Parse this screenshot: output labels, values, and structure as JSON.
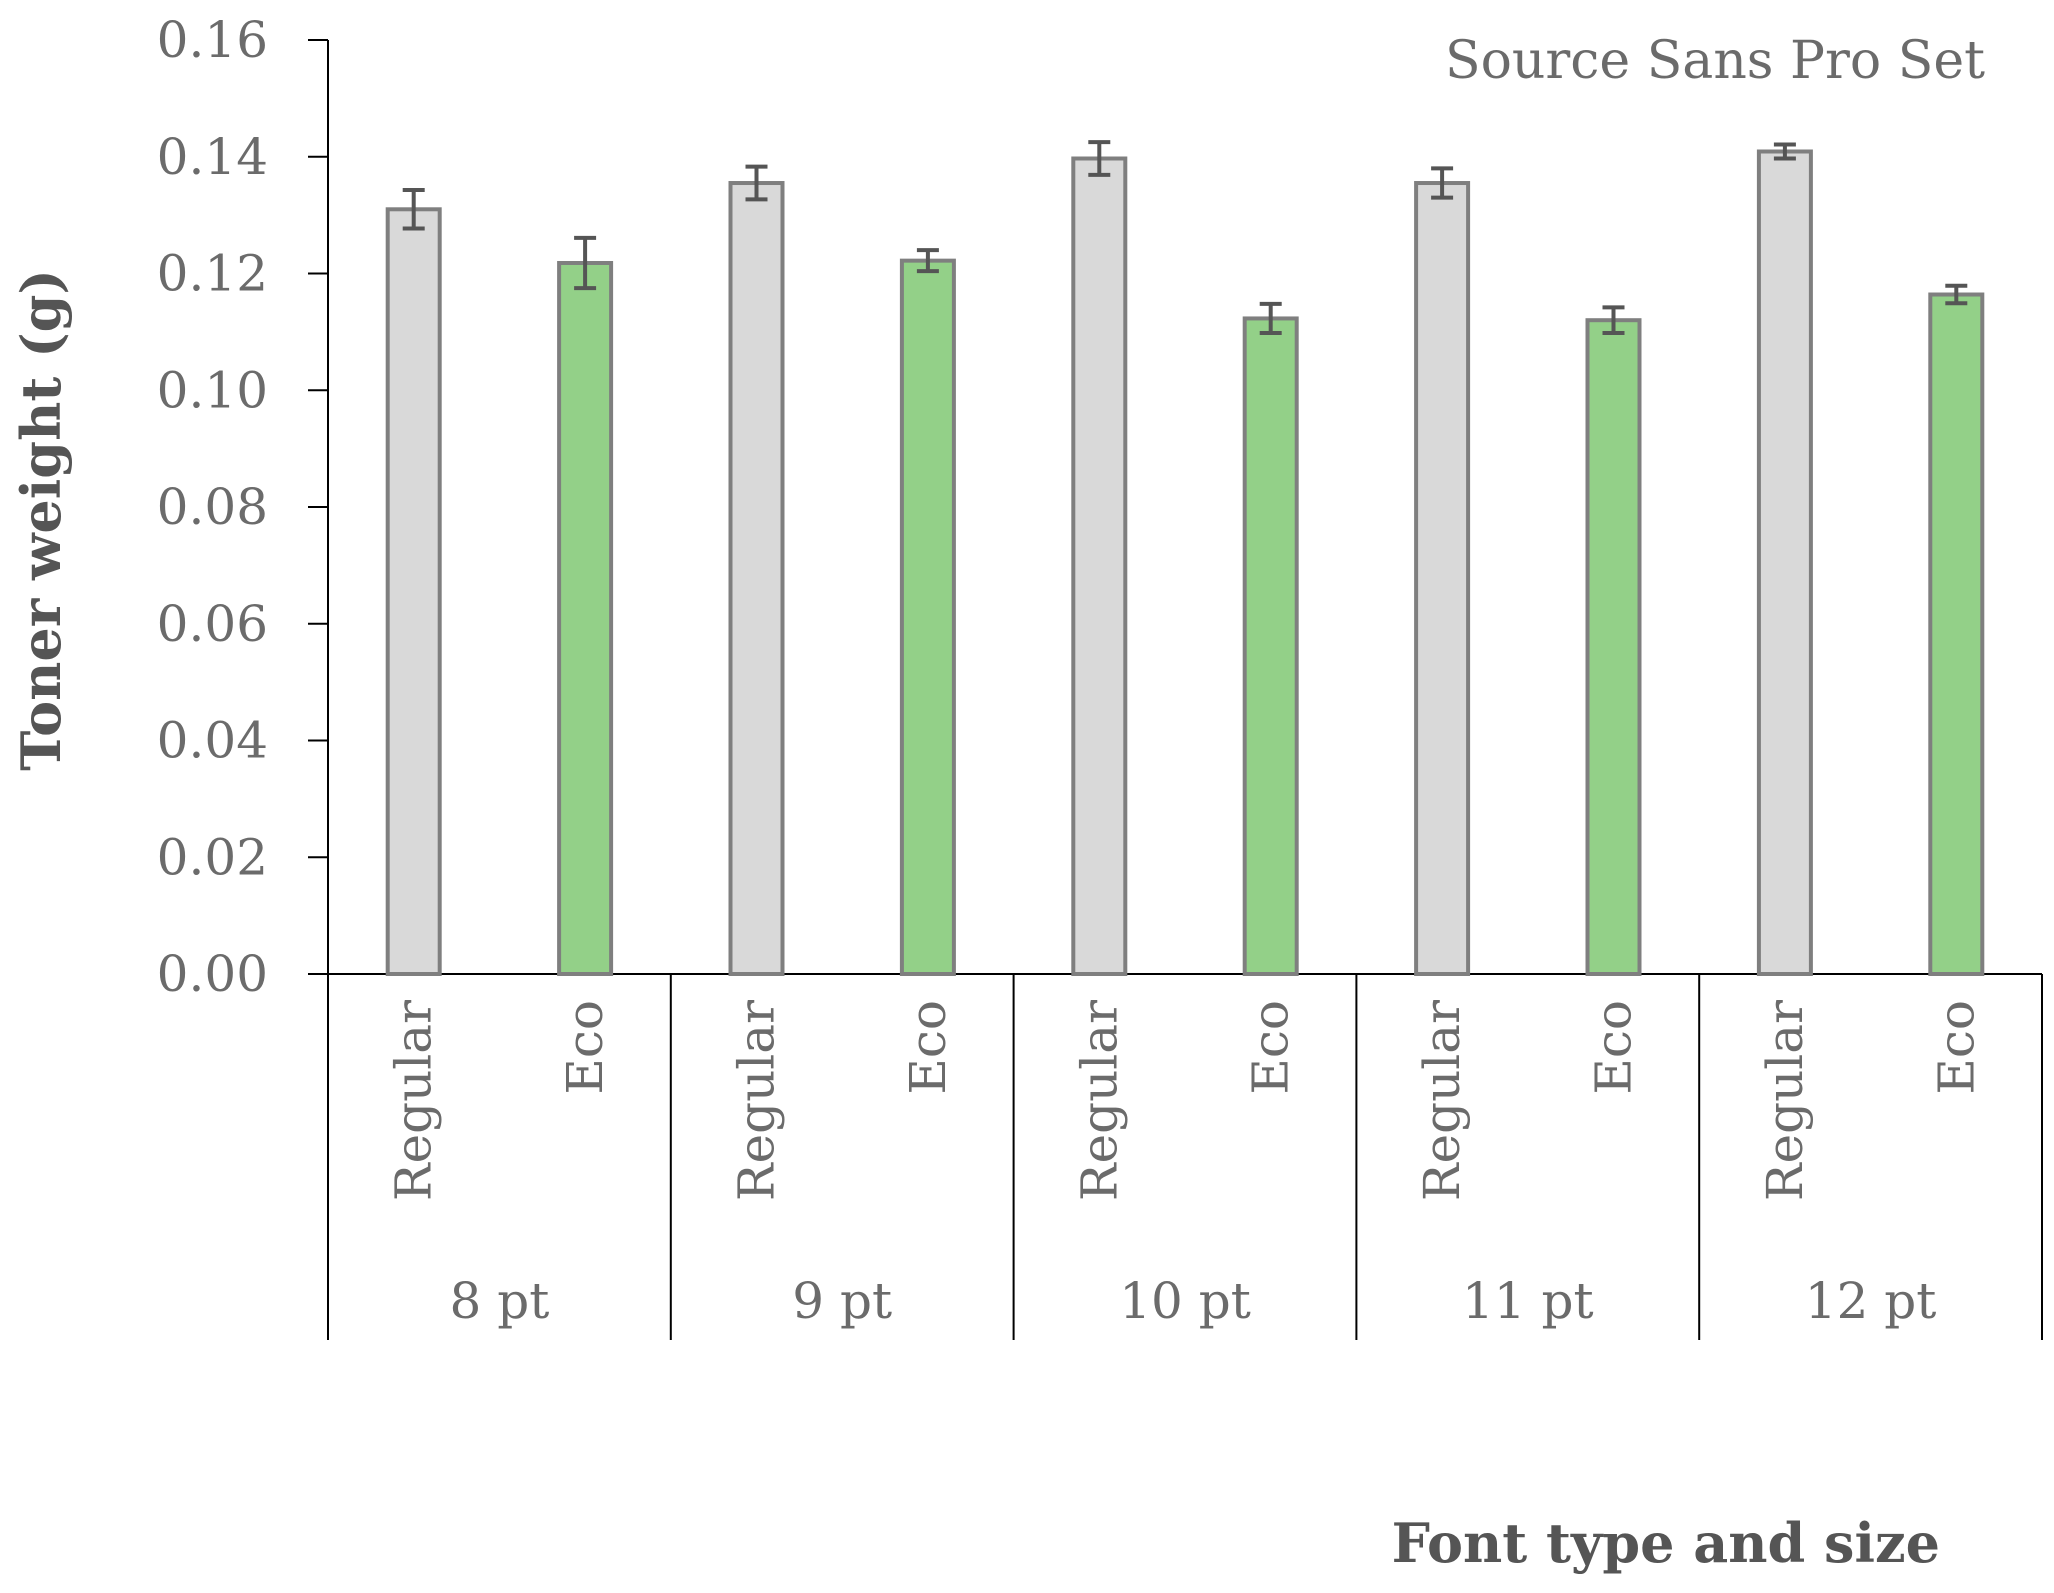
{
  "chart_data": {
    "type": "bar",
    "title": "Source Sans Pro Set",
    "xlabel": "Font type and size",
    "ylabel": "Toner weight (g)",
    "ylim": [
      0,
      0.16
    ],
    "y_ticks": [
      "0.00",
      "0.02",
      "0.04",
      "0.06",
      "0.08",
      "0.10",
      "0.12",
      "0.14",
      "0.16"
    ],
    "groups": [
      "8 pt",
      "9 pt",
      "10 pt",
      "11 pt",
      "12 pt"
    ],
    "categories_per_group": [
      "Regular",
      "Eco"
    ],
    "series": [
      {
        "name": "Regular",
        "color": "#d9d9d9",
        "values": [
          0.131,
          0.1355,
          0.1397,
          0.1355,
          0.1409
        ],
        "errors": [
          0.0033,
          0.0028,
          0.0028,
          0.0025,
          0.0012
        ]
      },
      {
        "name": "Eco",
        "color": "#93d088",
        "values": [
          0.1218,
          0.1222,
          0.1123,
          0.112,
          0.1164
        ],
        "errors": [
          0.0043,
          0.0018,
          0.0025,
          0.0022,
          0.0015
        ]
      }
    ],
    "bar_stroke": "#7f7f7f",
    "axis_color": "#000000",
    "grid": false,
    "legend": "none"
  }
}
